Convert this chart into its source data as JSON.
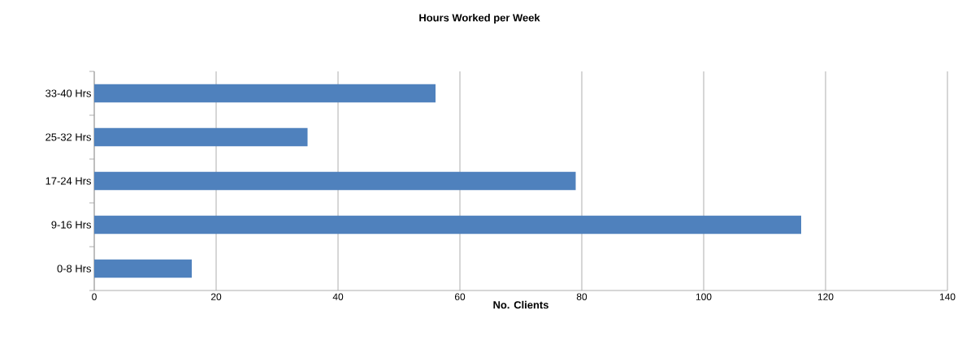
{
  "chart_data": {
    "type": "bar",
    "orientation": "horizontal",
    "title": "Hours Worked per Week",
    "xlabel": "No. Clients",
    "categories": [
      "33-40 Hrs",
      "25-32 Hrs",
      "17-24 Hrs",
      "9-16 Hrs",
      "0-8 Hrs"
    ],
    "values": [
      56,
      35,
      79,
      116,
      16
    ],
    "color": "#4f81bd",
    "xlim": [
      0,
      140
    ],
    "xticks": [
      0,
      20,
      40,
      60,
      80,
      100,
      120,
      140
    ],
    "grid": "x"
  }
}
